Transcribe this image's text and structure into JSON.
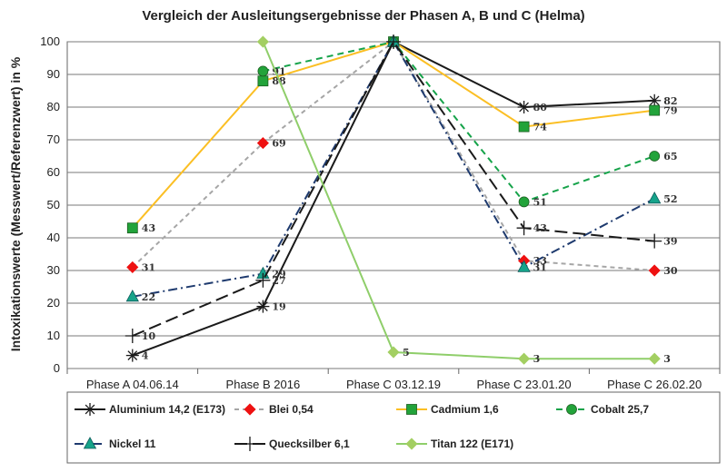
{
  "chart_data": {
    "type": "line",
    "title": "Vergleich der Ausleitungsergebnisse der Phasen A, B und C (Helma)",
    "xlabel": "",
    "ylabel": "Intoxikationswerte (Messwert/Referenzwert) in %",
    "ylim": [
      0,
      100
    ],
    "yticks": [
      0,
      10,
      20,
      30,
      40,
      50,
      60,
      70,
      80,
      90,
      100
    ],
    "grid": true,
    "legend_position": "bottom",
    "categories": [
      "Phase A 04.06.14",
      "Phase B 2016",
      "Phase C 03.12.19",
      "Phase C 23.01.20",
      "Phase C 26.02.20"
    ],
    "series": [
      {
        "name": "Aluminium 14,2 (E173)",
        "values": [
          4,
          19,
          100,
          80,
          82
        ],
        "labels": [
          "4",
          "19",
          "",
          "80",
          "82"
        ],
        "color": "#1a1a1a",
        "dash": "",
        "marker": "asterisk"
      },
      {
        "name": "Blei 0,54",
        "values": [
          31,
          69,
          100,
          33,
          30
        ],
        "labels": [
          "31",
          "69",
          "",
          "33",
          "30"
        ],
        "color": "#a6a6a6",
        "dash": "5,4",
        "marker": "diamond",
        "marker_color": "#ee1111"
      },
      {
        "name": "Cadmium 1,6",
        "values": [
          43,
          88,
          100,
          74,
          79
        ],
        "labels": [
          "43",
          "88",
          "",
          "74",
          "79"
        ],
        "color": "#fbbf24",
        "dash": "",
        "marker": "square",
        "marker_color": "#22a33a"
      },
      {
        "name": "Cobalt 25,7",
        "values": [
          null,
          91,
          100,
          51,
          65
        ],
        "labels": [
          "",
          "91",
          "",
          "51",
          "65"
        ],
        "color": "#16a34a",
        "dash": "7,5",
        "marker": "circle",
        "marker_color": "#22a33a"
      },
      {
        "name": "Nickel 11",
        "values": [
          22,
          29,
          100,
          31,
          52
        ],
        "labels": [
          "22",
          "29",
          "",
          "31",
          "52"
        ],
        "color": "#1e3a6e",
        "dash": "10,4,2,4",
        "marker": "triangle",
        "marker_color": "#16a38a"
      },
      {
        "name": "Quecksilber 6,1",
        "values": [
          10,
          27,
          100,
          43,
          39
        ],
        "labels": [
          "10",
          "27",
          "",
          "43",
          "39"
        ],
        "color": "#1a1a1a",
        "dash": "14,6",
        "marker": "plus"
      },
      {
        "name": "Titan 122 (E171)",
        "values": [
          null,
          100,
          5,
          3,
          3
        ],
        "labels": [
          "",
          "",
          "5",
          "3",
          "3"
        ],
        "color": "#8fce6a",
        "dash": "",
        "marker": "diamond",
        "marker_color": "#a3cf62"
      }
    ]
  }
}
